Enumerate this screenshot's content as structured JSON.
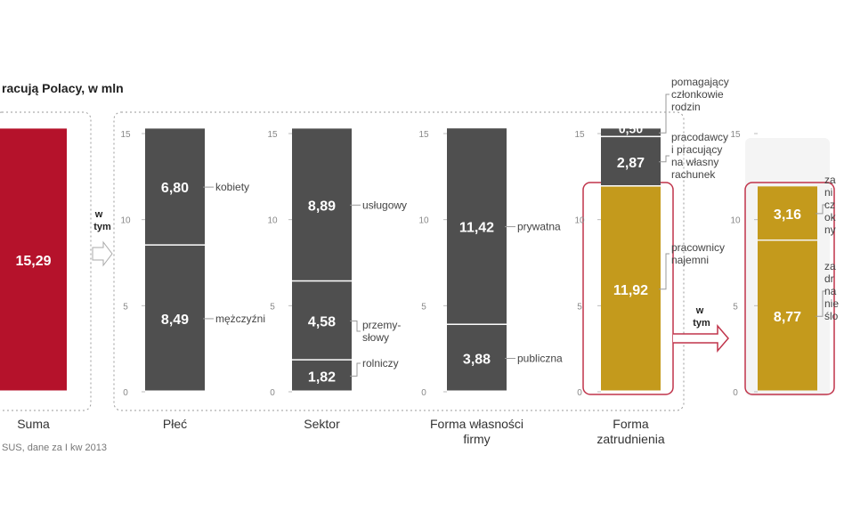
{
  "chart_data": {
    "type": "bar",
    "title": "racują Polacy, w mln",
    "source": "SUS, dane za I kw 2013",
    "ylim": [
      0,
      15
    ],
    "yticks": [
      "0",
      "5",
      "10",
      "15"
    ],
    "connector": "w tym",
    "colors": {
      "total": "#b5122b",
      "segment": "#4f4f4f",
      "highlight": "#c49a1c",
      "track": "#ededed",
      "frame": "#c0334a"
    },
    "columns": [
      {
        "category": "Suma",
        "segments": [
          {
            "value": 15.29,
            "label": "15,29",
            "annotation": []
          }
        ]
      },
      {
        "category": "Płeć",
        "segments": [
          {
            "value": 8.49,
            "label": "8,49",
            "annotation": [
              "mężczyźni"
            ]
          },
          {
            "value": 6.8,
            "label": "6,80",
            "annotation": [
              "kobiety"
            ]
          }
        ]
      },
      {
        "category": "Sektor",
        "segments": [
          {
            "value": 1.82,
            "label": "1,82",
            "annotation": [
              "rolniczy"
            ]
          },
          {
            "value": 4.58,
            "label": "4,58",
            "annotation": [
              "przemy-",
              "słowy"
            ]
          },
          {
            "value": 8.89,
            "label": "8,89",
            "annotation": [
              "usługowy"
            ]
          }
        ]
      },
      {
        "category": "Forma własności firmy",
        "category_lines": [
          "Forma własności",
          "firmy"
        ],
        "segments": [
          {
            "value": 3.88,
            "label": "3,88",
            "annotation": [
              "publiczna"
            ]
          },
          {
            "value": 11.42,
            "label": "11,42",
            "annotation": [
              "prywatna"
            ]
          }
        ]
      },
      {
        "category": "Forma zatrudnienia",
        "category_lines": [
          "Forma",
          "zatrudnienia"
        ],
        "segments": [
          {
            "value": 11.92,
            "label": "11,92",
            "annotation": [
              "pracownicy",
              "najemni"
            ]
          },
          {
            "value": 2.87,
            "label": "2,87",
            "annotation": [
              "pracodawcy",
              "i pracujący",
              "na własny",
              "rachunek"
            ]
          },
          {
            "value": 0.5,
            "label": "0,50",
            "annotation": [
              "pomagający",
              "członkowie",
              "rodzin"
            ]
          }
        ]
      },
      {
        "category": "",
        "segments": [
          {
            "value": 8.77,
            "label": "8,77",
            "annotation": [
              "za",
              "dr",
              "na",
              "nie",
              "ślo"
            ]
          },
          {
            "value": 3.16,
            "label": "3,16",
            "annotation": [
              "za",
              "ni",
              "cz",
              "ok",
              "ny"
            ]
          }
        ]
      }
    ]
  }
}
